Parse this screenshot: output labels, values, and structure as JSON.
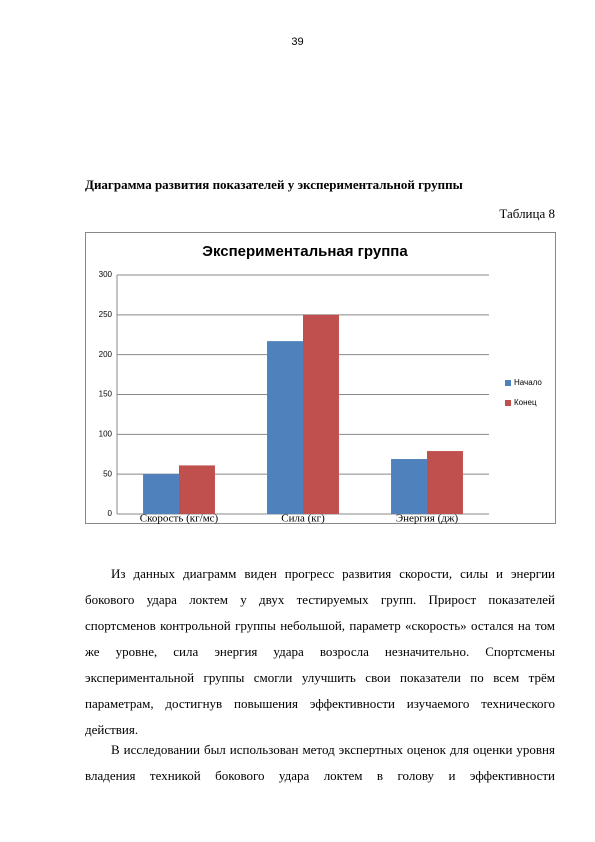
{
  "page_number": "39",
  "heading": "Диаграмма развития показателей у экспериментальной группы",
  "table_label": "Таблица 8",
  "chart_data": {
    "type": "bar",
    "title": "Экспериментальная группа",
    "categories": [
      "Скорость (кг/мс)",
      "Сила (кг)",
      "Энергия (дж)"
    ],
    "series": [
      {
        "name": "Начало",
        "color": "#4f81bd",
        "values": [
          50,
          217,
          69
        ]
      },
      {
        "name": "Конец",
        "color": "#c0504d",
        "values": [
          61,
          250,
          79
        ]
      }
    ],
    "ylim": [
      0,
      300
    ],
    "yticks": [
      0,
      50,
      100,
      150,
      200,
      250,
      300
    ],
    "grid": true,
    "legend": "right"
  },
  "paragraphs": [
    "Из данных диаграмм виден прогресс развития скорости, силы и энергии бокового удара локтем у двух тестируемых групп. Прирост показателей спортсменов контрольной группы небольшой, параметр «скорость» остался на том же уровне, сила энергия удара возросла незначительно. Спортсмены экспериментальной группы смогли улучшить свои показатели по всем трём параметрам, достигнув повышения эффективности изучаемого технического действия.",
    "В исследовании был использован метод экспертных оценок для оценки уровня владения техникой бокового удара локтем в голову и эффективности"
  ]
}
